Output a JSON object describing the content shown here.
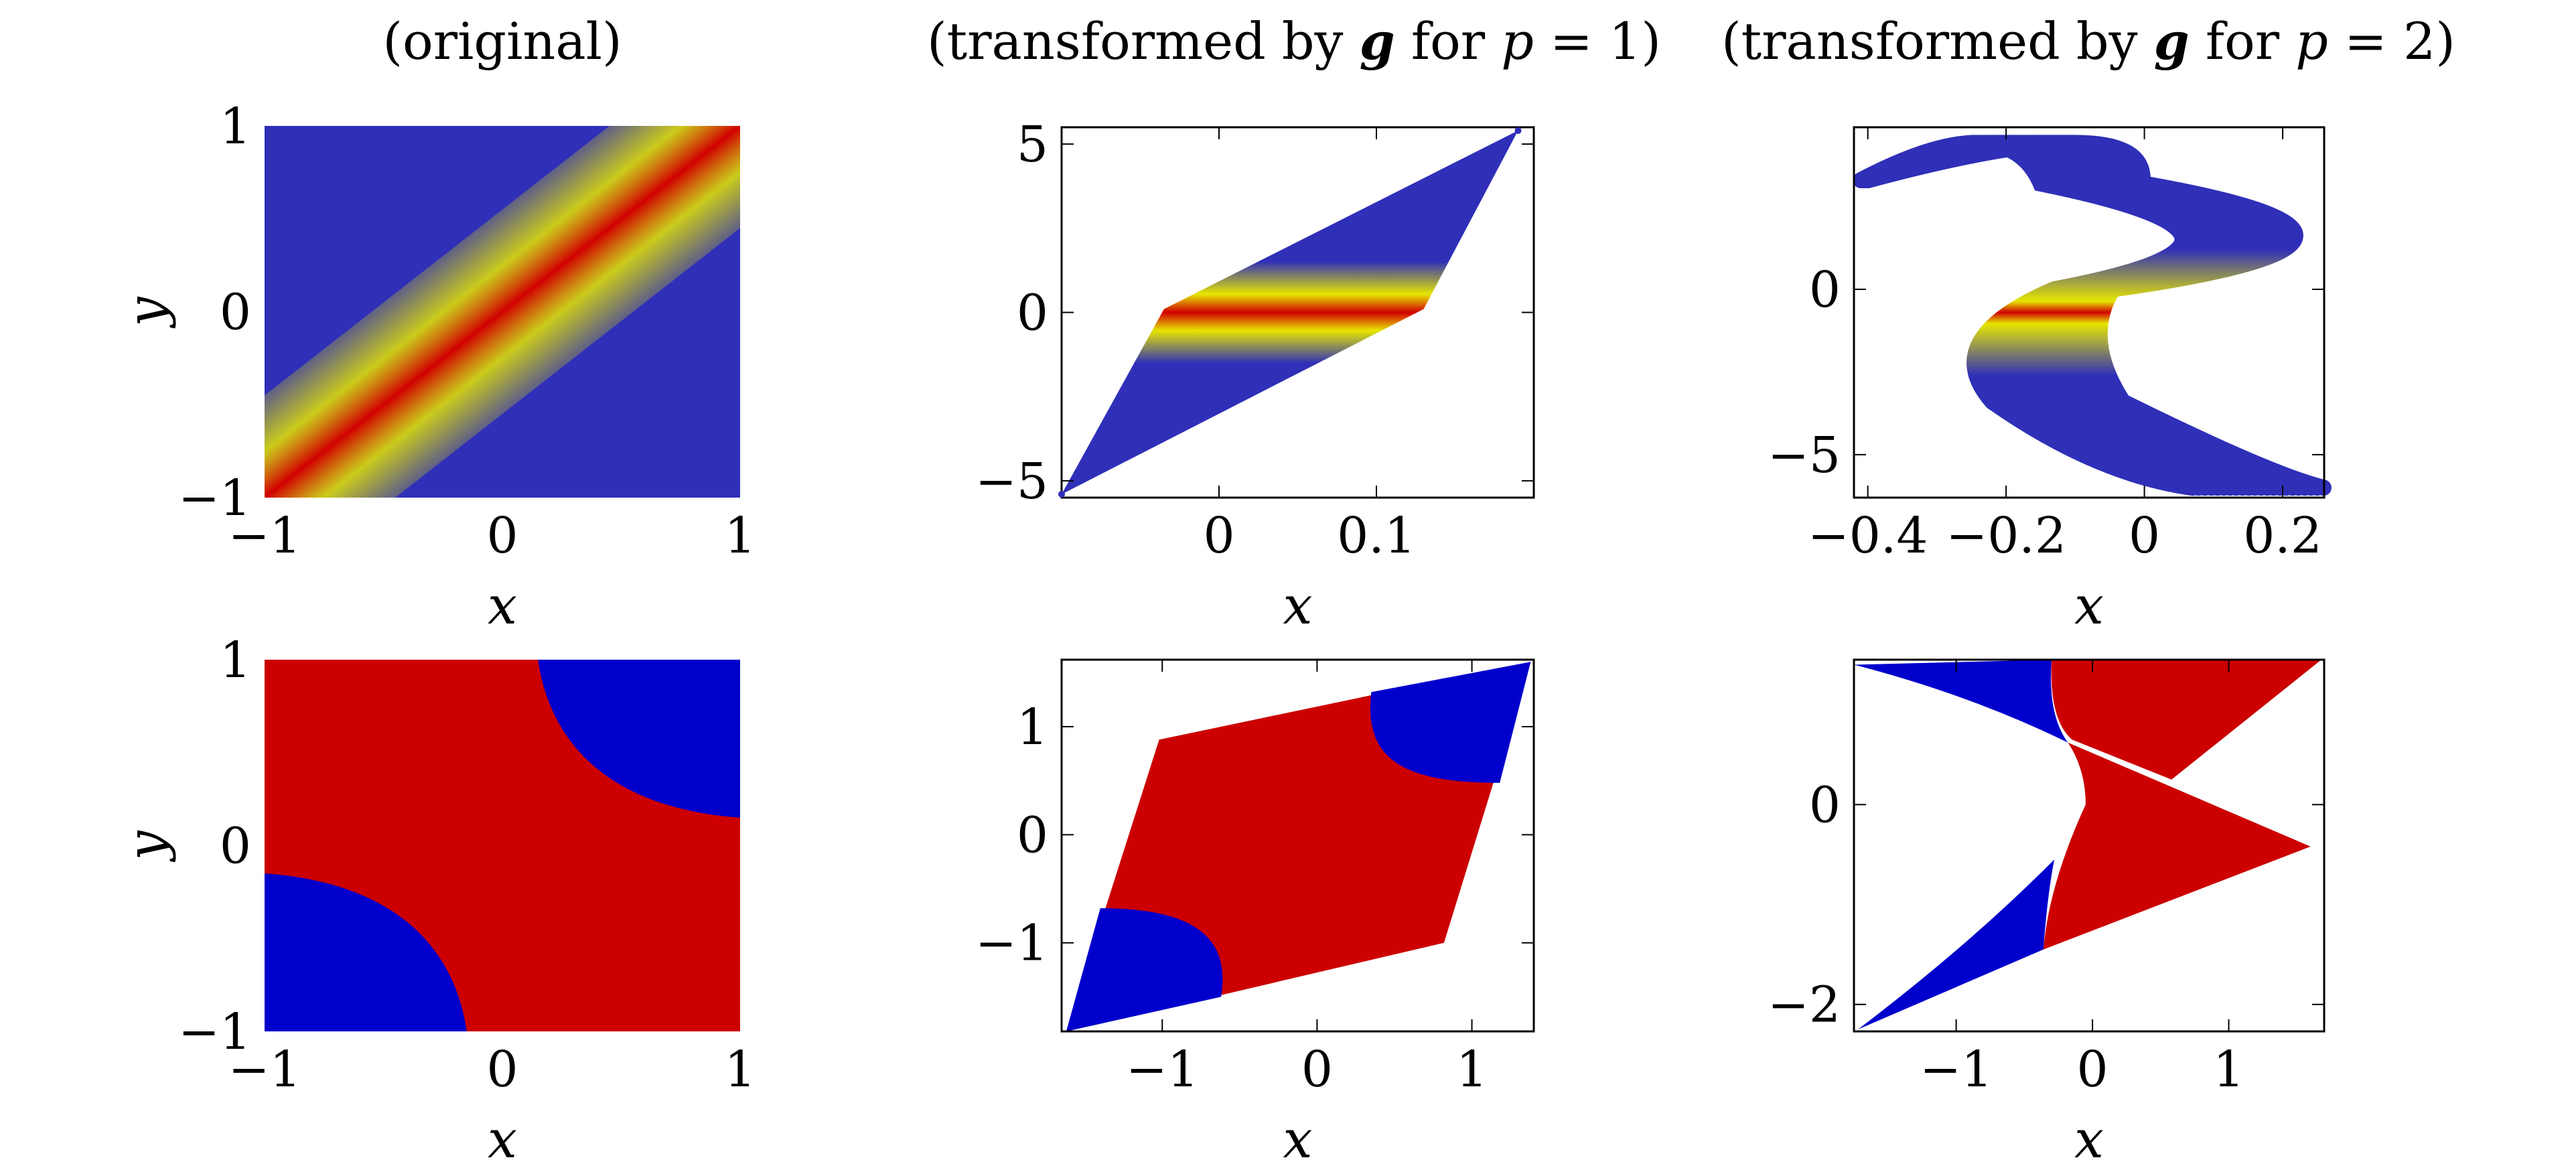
{
  "figure": {
    "columns": [
      {
        "label": "(original)"
      },
      {
        "label": "(transformed by ",
        "sym": "g",
        "mid": " for ",
        "var": "p",
        "eq": " = 1)"
      },
      {
        "label": "(transformed by ",
        "sym": "g",
        "mid": " for ",
        "var": "p",
        "eq": " = 2)"
      }
    ]
  },
  "colors": {
    "blue": "#2f2fb8",
    "yellow": "#e6e600",
    "red": "#d10000",
    "class_blue": "#0000cc",
    "class_red": "#cc0000"
  },
  "chart_data": [
    {
      "type": "heatmap",
      "id": "top-original",
      "title": "(original)",
      "xlabel": "x",
      "ylabel": "y",
      "xlim": [
        -1,
        1
      ],
      "ylim": [
        -1,
        1
      ],
      "xticks": [
        -1,
        0,
        1
      ],
      "xticklabels": [
        "−1",
        "0",
        "1"
      ],
      "yticks": [
        -1,
        0,
        1
      ],
      "yticklabels": [
        "−1",
        "0",
        "1"
      ],
      "field": "high (red) along the line y = x, fading through yellow to blue away from it"
    },
    {
      "type": "heatmap",
      "id": "top-p1",
      "title": "(transformed by g for p = 1)",
      "xlabel": "x",
      "ylabel": "",
      "xlim": [
        -0.1,
        0.2
      ],
      "ylim": [
        -5.5,
        5.5
      ],
      "xticks": [
        0,
        0.1
      ],
      "xticklabels": [
        "0",
        "0.1"
      ],
      "yticks": [
        -5,
        0,
        5
      ],
      "yticklabels": [
        "−5",
        "0",
        "5"
      ],
      "region": [
        [
          -0.1,
          -5.4
        ],
        [
          -0.035,
          0.1
        ],
        [
          0.19,
          5.4
        ],
        [
          0.13,
          0.1
        ]
      ]
    },
    {
      "type": "heatmap",
      "id": "top-p2",
      "title": "(transformed by g for p = 2)",
      "xlabel": "x",
      "ylabel": "",
      "xlim": [
        -0.42,
        0.26
      ],
      "ylim": [
        -6.3,
        4.9
      ],
      "xticks": [
        -0.4,
        -0.2,
        0,
        0.2
      ],
      "xticklabels": [
        "−0.4",
        "−0.2",
        "0",
        "0.2"
      ],
      "yticks": [
        -5,
        0
      ],
      "yticklabels": [
        "−5",
        "0"
      ]
    },
    {
      "type": "scatter",
      "id": "bottom-original",
      "xlabel": "x",
      "ylabel": "y",
      "xlim": [
        -1,
        1
      ],
      "ylim": [
        -1,
        1
      ],
      "xticks": [
        -1,
        0,
        1
      ],
      "xticklabels": [
        "−1",
        "0",
        "1"
      ],
      "yticks": [
        -1,
        0,
        1
      ],
      "yticklabels": [
        "−1",
        "0",
        "1"
      ],
      "classes": [
        "red",
        "blue"
      ]
    },
    {
      "type": "scatter",
      "id": "bottom-p1",
      "xlabel": "x",
      "ylabel": "",
      "xlim": [
        -1.65,
        1.4
      ],
      "ylim": [
        -1.82,
        1.62
      ],
      "xticks": [
        -1,
        0,
        1
      ],
      "xticklabels": [
        "−1",
        "0",
        "1"
      ],
      "yticks": [
        -1,
        0,
        1
      ],
      "yticklabels": [
        "−1",
        "0",
        "1"
      ],
      "region": [
        [
          -1.62,
          -1.82
        ],
        [
          -1.02,
          0.88
        ],
        [
          1.38,
          1.6
        ],
        [
          0.82,
          -1.0
        ]
      ]
    },
    {
      "type": "scatter",
      "id": "bottom-p2",
      "xlabel": "x",
      "ylabel": "",
      "xlim": [
        -1.75,
        1.7
      ],
      "ylim": [
        -2.27,
        1.45
      ],
      "xticks": [
        -1,
        0,
        1
      ],
      "xticklabels": [
        "−1",
        "0",
        "1"
      ],
      "yticks": [
        -2,
        0
      ],
      "yticklabels": [
        "−2",
        "0"
      ]
    }
  ]
}
